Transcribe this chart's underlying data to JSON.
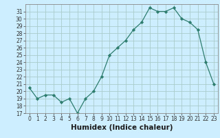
{
  "x": [
    0,
    1,
    2,
    3,
    4,
    5,
    6,
    7,
    8,
    9,
    10,
    11,
    12,
    13,
    14,
    15,
    16,
    17,
    18,
    19,
    20,
    21,
    22,
    23
  ],
  "y": [
    20.5,
    19,
    19.5,
    19.5,
    18.5,
    19,
    17,
    19,
    20,
    22,
    25,
    26,
    27,
    28.5,
    29.5,
    31.5,
    31,
    31,
    31.5,
    30,
    29.5,
    28.5,
    24,
    21
  ],
  "line_color": "#2e7d6e",
  "marker": "D",
  "marker_size": 2.2,
  "bg_color": "#cceeff",
  "grid_color": "#aacccc",
  "xlabel": "Humidex (Indice chaleur)",
  "ylim": [
    17,
    32
  ],
  "xlim": [
    -0.5,
    23.5
  ],
  "yticks": [
    17,
    18,
    19,
    20,
    21,
    22,
    23,
    24,
    25,
    26,
    27,
    28,
    29,
    30,
    31
  ],
  "xticks": [
    0,
    1,
    2,
    3,
    4,
    5,
    6,
    7,
    8,
    9,
    10,
    11,
    12,
    13,
    14,
    15,
    16,
    17,
    18,
    19,
    20,
    21,
    22,
    23
  ],
  "tick_fontsize": 5.5,
  "xlabel_fontsize": 7.5
}
